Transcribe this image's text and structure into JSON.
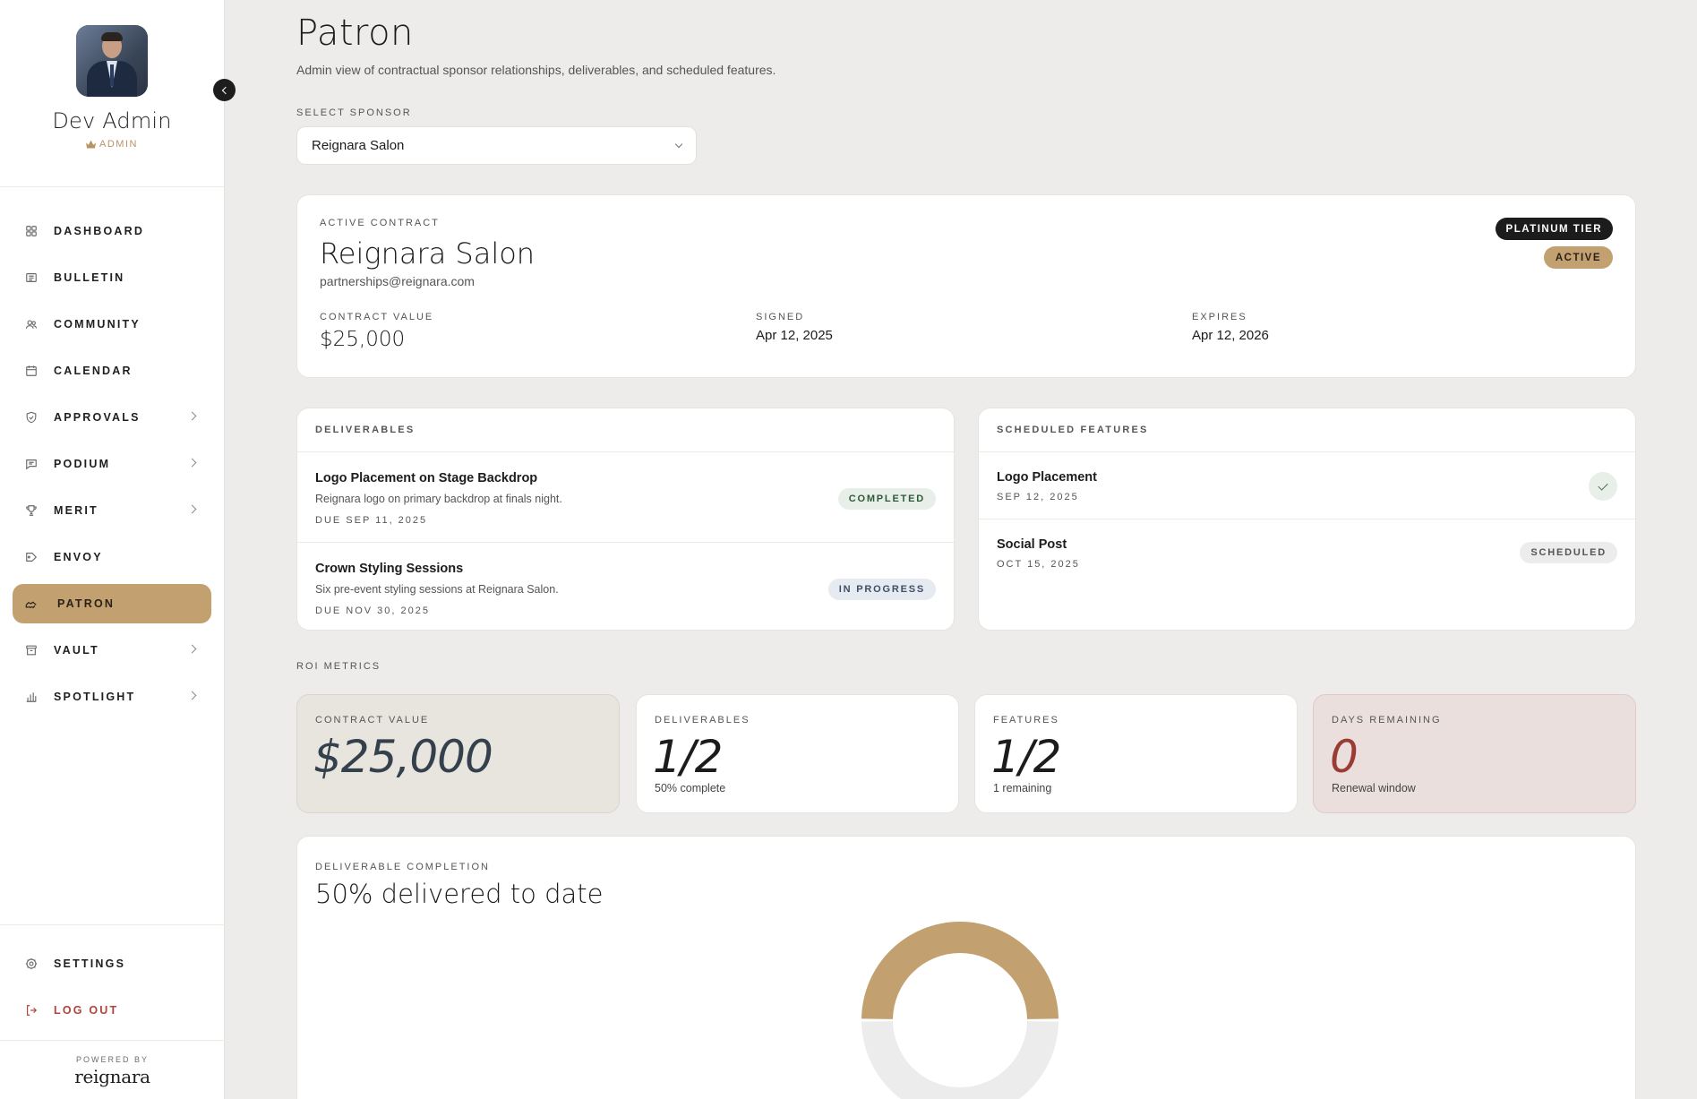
{
  "sidebar": {
    "profile": {
      "name": "Dev Admin",
      "role": "ADMIN"
    },
    "nav": [
      {
        "label": "DASHBOARD",
        "icon": "grid-icon",
        "chevron": false,
        "active": false
      },
      {
        "label": "BULLETIN",
        "icon": "newspaper-icon",
        "chevron": false,
        "active": false
      },
      {
        "label": "COMMUNITY",
        "icon": "users-icon",
        "chevron": false,
        "active": false
      },
      {
        "label": "CALENDAR",
        "icon": "calendar-icon",
        "chevron": false,
        "active": false
      },
      {
        "label": "APPROVALS",
        "icon": "shield-check-icon",
        "chevron": true,
        "active": false
      },
      {
        "label": "PODIUM",
        "icon": "message-square-icon",
        "chevron": true,
        "active": false
      },
      {
        "label": "MERIT",
        "icon": "trophy-icon",
        "chevron": true,
        "active": false
      },
      {
        "label": "ENVOY",
        "icon": "tag-icon",
        "chevron": false,
        "active": false
      },
      {
        "label": "PATRON",
        "icon": "handshake-icon",
        "chevron": false,
        "active": true
      },
      {
        "label": "VAULT",
        "icon": "archive-icon",
        "chevron": true,
        "active": false
      },
      {
        "label": "SPOTLIGHT",
        "icon": "bar-chart-icon",
        "chevron": true,
        "active": false
      }
    ],
    "settings_label": "SETTINGS",
    "logout_label": "LOG OUT",
    "powered_by": "POWERED BY",
    "brand": "reignara"
  },
  "page": {
    "title": "Patron",
    "subtitle": "Admin view of contractual sponsor relationships, deliverables, and scheduled features."
  },
  "sponsor_select": {
    "label": "SELECT SPONSOR",
    "value": "Reignara Salon"
  },
  "contract": {
    "eyebrow": "ACTIVE CONTRACT",
    "name": "Reignara Salon",
    "email": "partnerships@reignara.com",
    "tier": "PLATINUM TIER",
    "status": "ACTIVE",
    "value_label": "CONTRACT VALUE",
    "value": "$25,000",
    "signed_label": "SIGNED",
    "signed": "Apr 12, 2025",
    "expires_label": "EXPIRES",
    "expires": "Apr 12, 2026"
  },
  "deliverables": {
    "heading": "DELIVERABLES",
    "items": [
      {
        "title": "Logo Placement on Stage Backdrop",
        "desc": "Reignara logo on primary backdrop at finals night.",
        "due": "DUE SEP 11, 2025",
        "status": "COMPLETED"
      },
      {
        "title": "Crown Styling Sessions",
        "desc": "Six pre-event styling sessions at Reignara Salon.",
        "due": "DUE NOV 30, 2025",
        "status": "IN PROGRESS"
      }
    ]
  },
  "features": {
    "heading": "SCHEDULED FEATURES",
    "items": [
      {
        "title": "Logo Placement",
        "date": "SEP 12, 2025",
        "status": "done"
      },
      {
        "title": "Social Post",
        "date": "OCT 15, 2025",
        "status": "SCHEDULED"
      }
    ]
  },
  "roi": {
    "label": "ROI METRICS",
    "metrics": [
      {
        "label": "CONTRACT VALUE",
        "value": "$25,000",
        "sub": ""
      },
      {
        "label": "DELIVERABLES",
        "value": "1/2",
        "sub": "50% complete"
      },
      {
        "label": "FEATURES",
        "value": "1/2",
        "sub": "1 remaining"
      },
      {
        "label": "DAYS REMAINING",
        "value": "0",
        "sub": "Renewal window"
      }
    ]
  },
  "completion": {
    "eyebrow": "DELIVERABLE COMPLETION",
    "title": "50% delivered to date",
    "fraction": 0.5
  },
  "colors": {
    "accent": "#c2a06f",
    "dark": "#1c1c1c",
    "danger": "#b0433b",
    "track": "#ececec"
  }
}
